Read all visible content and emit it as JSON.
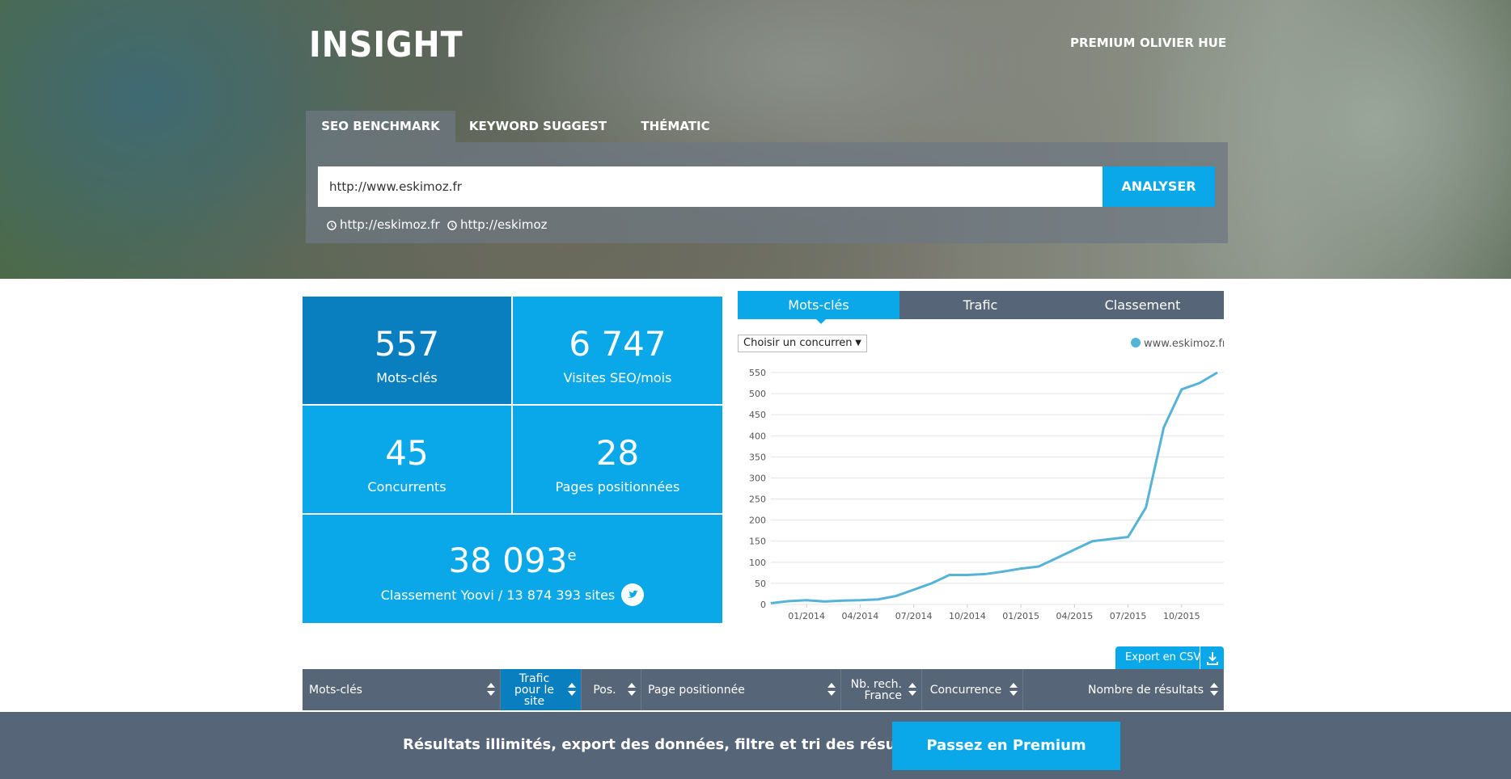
{
  "header": {
    "logo": "INSIGHT",
    "nav": [
      "PREMIUM",
      "OLIVIER HUE"
    ],
    "tabs": [
      "SEO BENCHMARK",
      "KEYWORD SUGGEST",
      "THÉMATIC"
    ],
    "search": {
      "value": "http://www.eskimoz.fr",
      "button": "ANALYSER",
      "recent": [
        "http://eskimoz.fr",
        "http://eskimoz"
      ]
    }
  },
  "stats": [
    {
      "value": "557",
      "label": "Mots-clés"
    },
    {
      "value": "6 747",
      "label": "Visites SEO/mois"
    },
    {
      "value": "45",
      "label": "Concurrents"
    },
    {
      "value": "28",
      "label": "Pages positionnées"
    }
  ],
  "ranking": {
    "value": "38 093",
    "suffix": "e",
    "label": "Classement Yoovi / 13 874 393 sites"
  },
  "chart_tabs": [
    "Mots-clés",
    "Trafic",
    "Classement"
  ],
  "competitor_select": "Choisir un concurren",
  "chart_data": {
    "type": "line",
    "x": [
      "11/2013",
      "12/2013",
      "01/2014",
      "02/2014",
      "03/2014",
      "04/2014",
      "05/2014",
      "06/2014",
      "07/2014",
      "08/2014",
      "09/2014",
      "10/2014",
      "11/2014",
      "12/2014",
      "01/2015",
      "02/2015",
      "03/2015",
      "04/2015",
      "05/2015",
      "06/2015",
      "07/2015",
      "08/2015",
      "09/2015",
      "10/2015",
      "11/2015",
      "12/2015"
    ],
    "series": [
      {
        "name": "www.eskimoz.fr",
        "color": "#55b3d8",
        "values": [
          3,
          8,
          10,
          7,
          9,
          10,
          12,
          20,
          35,
          50,
          70,
          70,
          72,
          78,
          85,
          90,
          110,
          130,
          150,
          155,
          160,
          230,
          420,
          510,
          525,
          550
        ]
      }
    ],
    "xlim": [
      "11/2013",
      "12/2015"
    ],
    "xticks": [
      "01/2014",
      "04/2014",
      "07/2014",
      "10/2014",
      "01/2015",
      "04/2015",
      "07/2015",
      "10/2015"
    ],
    "ylim": [
      0,
      550
    ],
    "yticks": [
      0,
      50,
      100,
      150,
      200,
      250,
      300,
      350,
      400,
      450,
      500,
      550
    ],
    "grid": true,
    "legend": "top-right"
  },
  "table": {
    "export": "Export en CSV",
    "columns": [
      "Mots-clés",
      "Trafic pour le site",
      "Pos.",
      "Page positionnée",
      "Nb. rech. France",
      "Concurrence",
      "Nombre de résultats"
    ]
  },
  "footer": {
    "text": "Résultats illimités, export des données, filtre et tri des résultats...",
    "button": "Passez en Premium"
  }
}
